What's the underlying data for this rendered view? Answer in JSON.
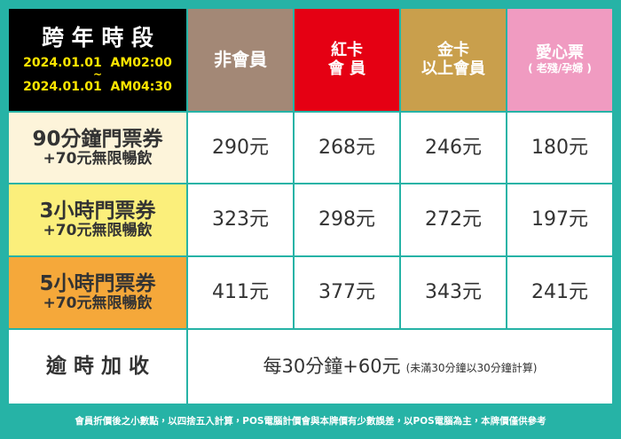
{
  "header": {
    "period_title": "跨 年 時 段",
    "period_start": "2024.01.01  AM02:00",
    "period_sep": "~",
    "period_end": "2024.01.01  AM04:30",
    "columns": [
      {
        "lines": [
          "非會員"
        ],
        "color": "#a38876"
      },
      {
        "lines": [
          "紅卡",
          "會 員"
        ],
        "color": "#e50013"
      },
      {
        "lines": [
          "金卡",
          "以上會員"
        ],
        "color": "#c99f4c"
      },
      {
        "lines": [
          "愛心票",
          "( 老殘/孕婦 )"
        ],
        "color": "#f09bc1"
      }
    ]
  },
  "rows": [
    {
      "label": [
        "90分鐘門票券",
        "+70元無限暢飲"
      ],
      "color": "#fdf4da",
      "prices": [
        "290元",
        "268元",
        "246元",
        "180元"
      ]
    },
    {
      "label": [
        "3小時門票券",
        "+70元無限暢飲"
      ],
      "color": "#fbef7b",
      "prices": [
        "323元",
        "298元",
        "272元",
        "197元"
      ]
    },
    {
      "label": [
        "5小時門票券",
        "+70元無限暢飲"
      ],
      "color": "#f5a83a",
      "prices": [
        "411元",
        "377元",
        "343元",
        "241元"
      ]
    }
  ],
  "overtime": {
    "label": "逾 時 加 收",
    "main": "每30分鐘+60元",
    "note": "(未滿30分鐘以30分鐘計算)"
  },
  "footer": "會員折價後之小數點，以四捨五入計算，POS電腦計價會與本牌價有少數誤差，以POS電腦為主，本牌價僅供參考"
}
